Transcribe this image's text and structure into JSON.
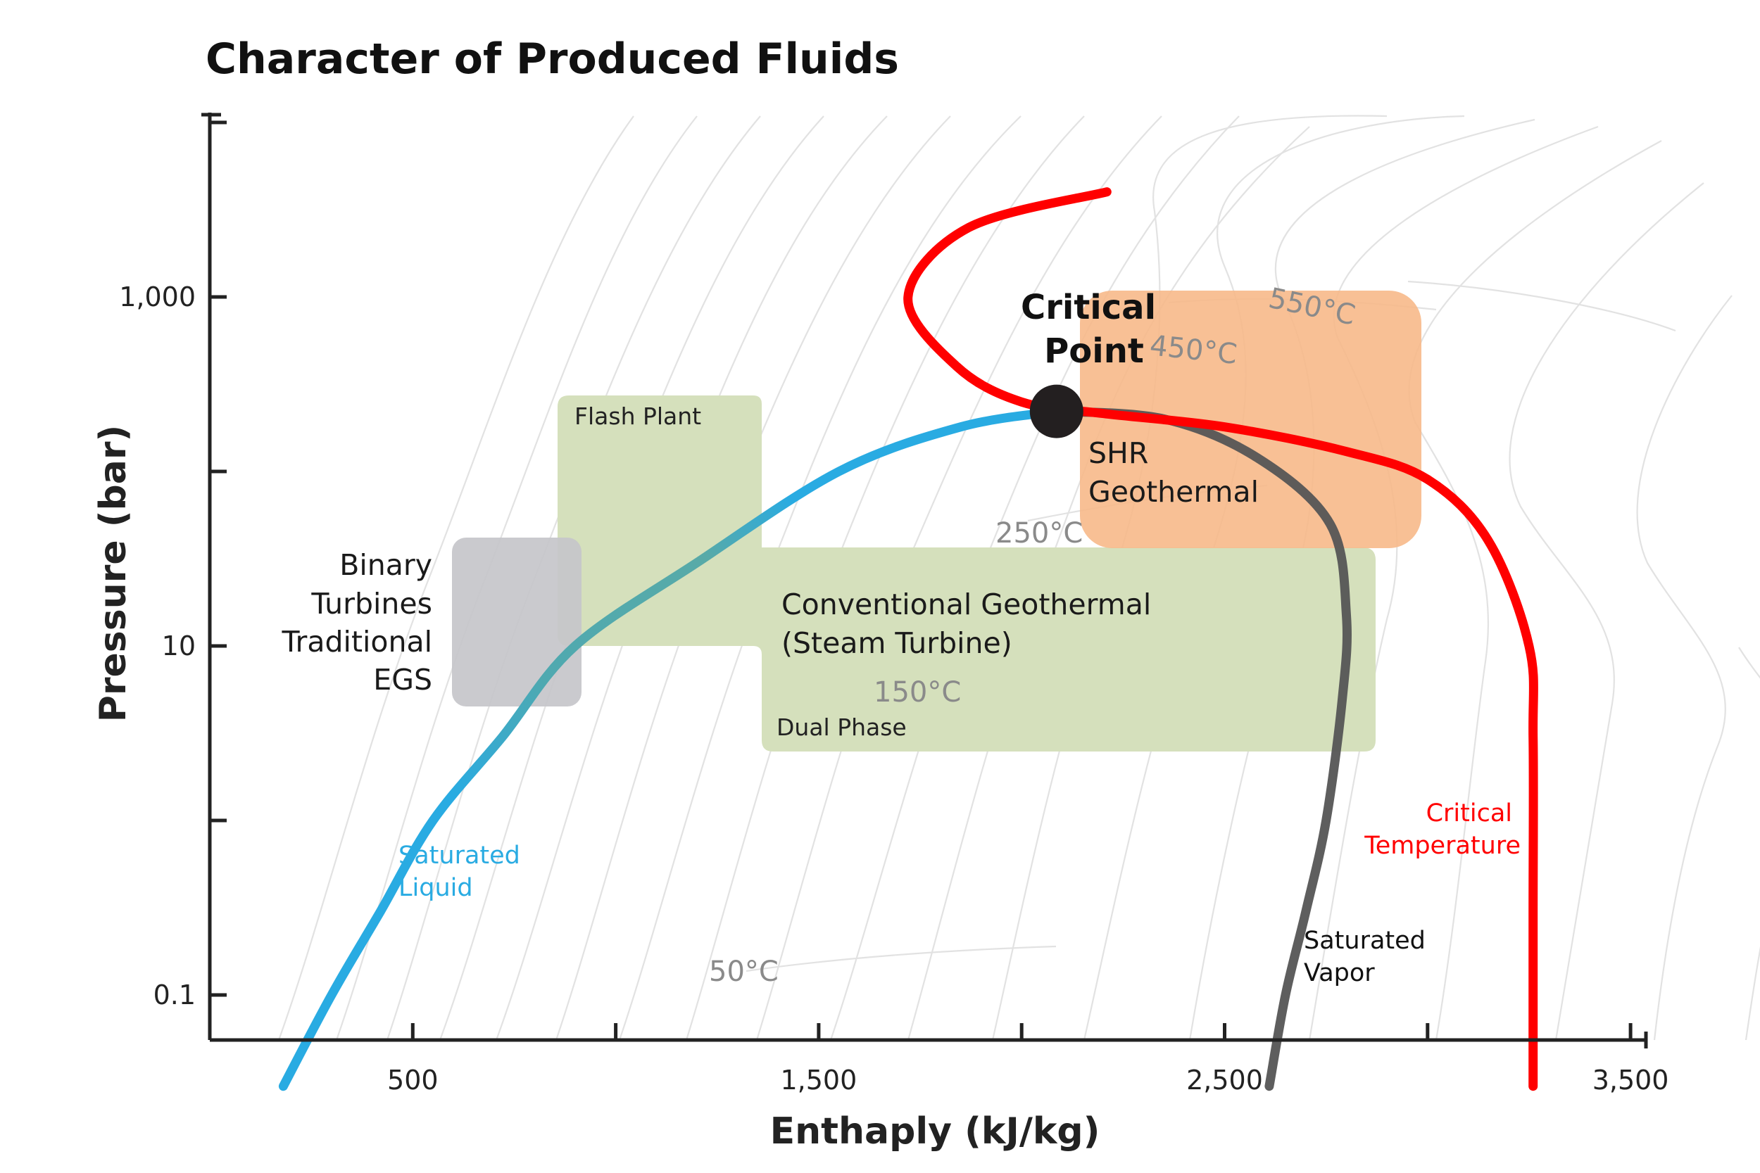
{
  "chart_data": {
    "type": "line",
    "title": "Character of Produced Fluids",
    "xlabel": "Enthaply (kJ/kg)",
    "ylabel": "Pressure (bar)",
    "y_scale": "log",
    "xlim": [
      0,
      3500
    ],
    "ylim": [
      0.03,
      10000
    ],
    "x_ticks": [
      0,
      500,
      1000,
      1500,
      2000,
      2500,
      3000,
      3500
    ],
    "x_tick_labels": [
      {
        "value": 500,
        "label": "500"
      },
      {
        "value": 1500,
        "label": "1,500"
      },
      {
        "value": 2500,
        "label": "2,500"
      },
      {
        "value": 3500,
        "label": "3,500"
      }
    ],
    "y_ticks": [
      0.1,
      1,
      10,
      100,
      1000,
      10000
    ],
    "y_tick_labels": [
      {
        "value": 0.1,
        "label": "0.1"
      },
      {
        "value": 10,
        "label": "10"
      },
      {
        "value": 1000,
        "label": "1,000"
      }
    ],
    "grid": false,
    "series": [
      {
        "name": "Saturated Liquid",
        "color": "#29abe2",
        "points": [
          [
            181,
            0.03
          ],
          [
            300,
            0.1
          ],
          [
            420,
            0.3
          ],
          [
            550,
            1
          ],
          [
            720,
            3
          ],
          [
            900,
            10
          ],
          [
            1200,
            30
          ],
          [
            1550,
            100
          ],
          [
            1850,
            180
          ],
          [
            2086,
            221
          ]
        ]
      },
      {
        "name": "Saturated Vapor",
        "color": "#555555",
        "points": [
          [
            2086,
            221
          ],
          [
            2350,
            200
          ],
          [
            2580,
            120
          ],
          [
            2760,
            50
          ],
          [
            2800,
            15
          ],
          [
            2790,
            5
          ],
          [
            2750,
            1
          ],
          [
            2700,
            0.3
          ],
          [
            2650,
            0.1
          ],
          [
            2610,
            0.03
          ]
        ]
      },
      {
        "name": "Critical Temperature",
        "color": "#ff0000",
        "points": [
          [
            2210,
            4000
          ],
          [
            1870,
            2500
          ],
          [
            1720,
            1000
          ],
          [
            1840,
            400
          ],
          [
            2000,
            250
          ],
          [
            2200,
            215
          ],
          [
            2500,
            180
          ],
          [
            2800,
            130
          ],
          [
            3000,
            90
          ],
          [
            3150,
            40
          ],
          [
            3250,
            10
          ],
          [
            3260,
            3
          ],
          [
            3260,
            0.3
          ],
          [
            3260,
            0.03
          ]
        ]
      }
    ],
    "critical_point": {
      "label": [
        "Critical",
        "Point"
      ],
      "x": 2086,
      "y": 221
    },
    "regions": [
      {
        "name": "Binary Turbines Traditional EGS",
        "label_lines": [
          "Binary",
          "Turbines",
          "Traditional",
          "EGS"
        ],
        "color": "#c6c6ca",
        "x": [
          600,
          910
        ],
        "y": [
          5,
          40
        ]
      },
      {
        "name": "Flash Plant",
        "label_lines": [
          "Flash Plant"
        ],
        "color": "#d5e0bc",
        "x": [
          910,
          1420
        ],
        "y": [
          10,
          280
        ]
      },
      {
        "name": "Conventional Geothermal (Steam Turbine)",
        "label_lines": [
          "Conventional Geothermal",
          "(Steam Turbine)"
        ],
        "color": "#d5e0bc",
        "x": [
          1420,
          2920
        ],
        "y": [
          2,
          40
        ]
      },
      {
        "name": "Dual Phase",
        "label_lines": [
          "Dual Phase"
        ],
        "color": "#d5e0bc"
      },
      {
        "name": "SHR Geothermal",
        "label_lines": [
          "SHR",
          "Geothermal"
        ],
        "color": "#f7b98a",
        "x": [
          2150,
          3000
        ],
        "y": [
          40,
          1000
        ]
      }
    ],
    "isotherm_labels": [
      "550°C",
      "450°C",
      "250°C",
      "150°C",
      "50°C"
    ],
    "annotations": [
      {
        "text_lines": [
          "Saturated",
          "Liquid"
        ],
        "color": "#29abe2"
      },
      {
        "text_lines": [
          "Saturated",
          "Vapor"
        ],
        "color": "#111111"
      },
      {
        "text_lines": [
          "Critical",
          "Temperature"
        ],
        "color": "#ff0000"
      }
    ]
  }
}
